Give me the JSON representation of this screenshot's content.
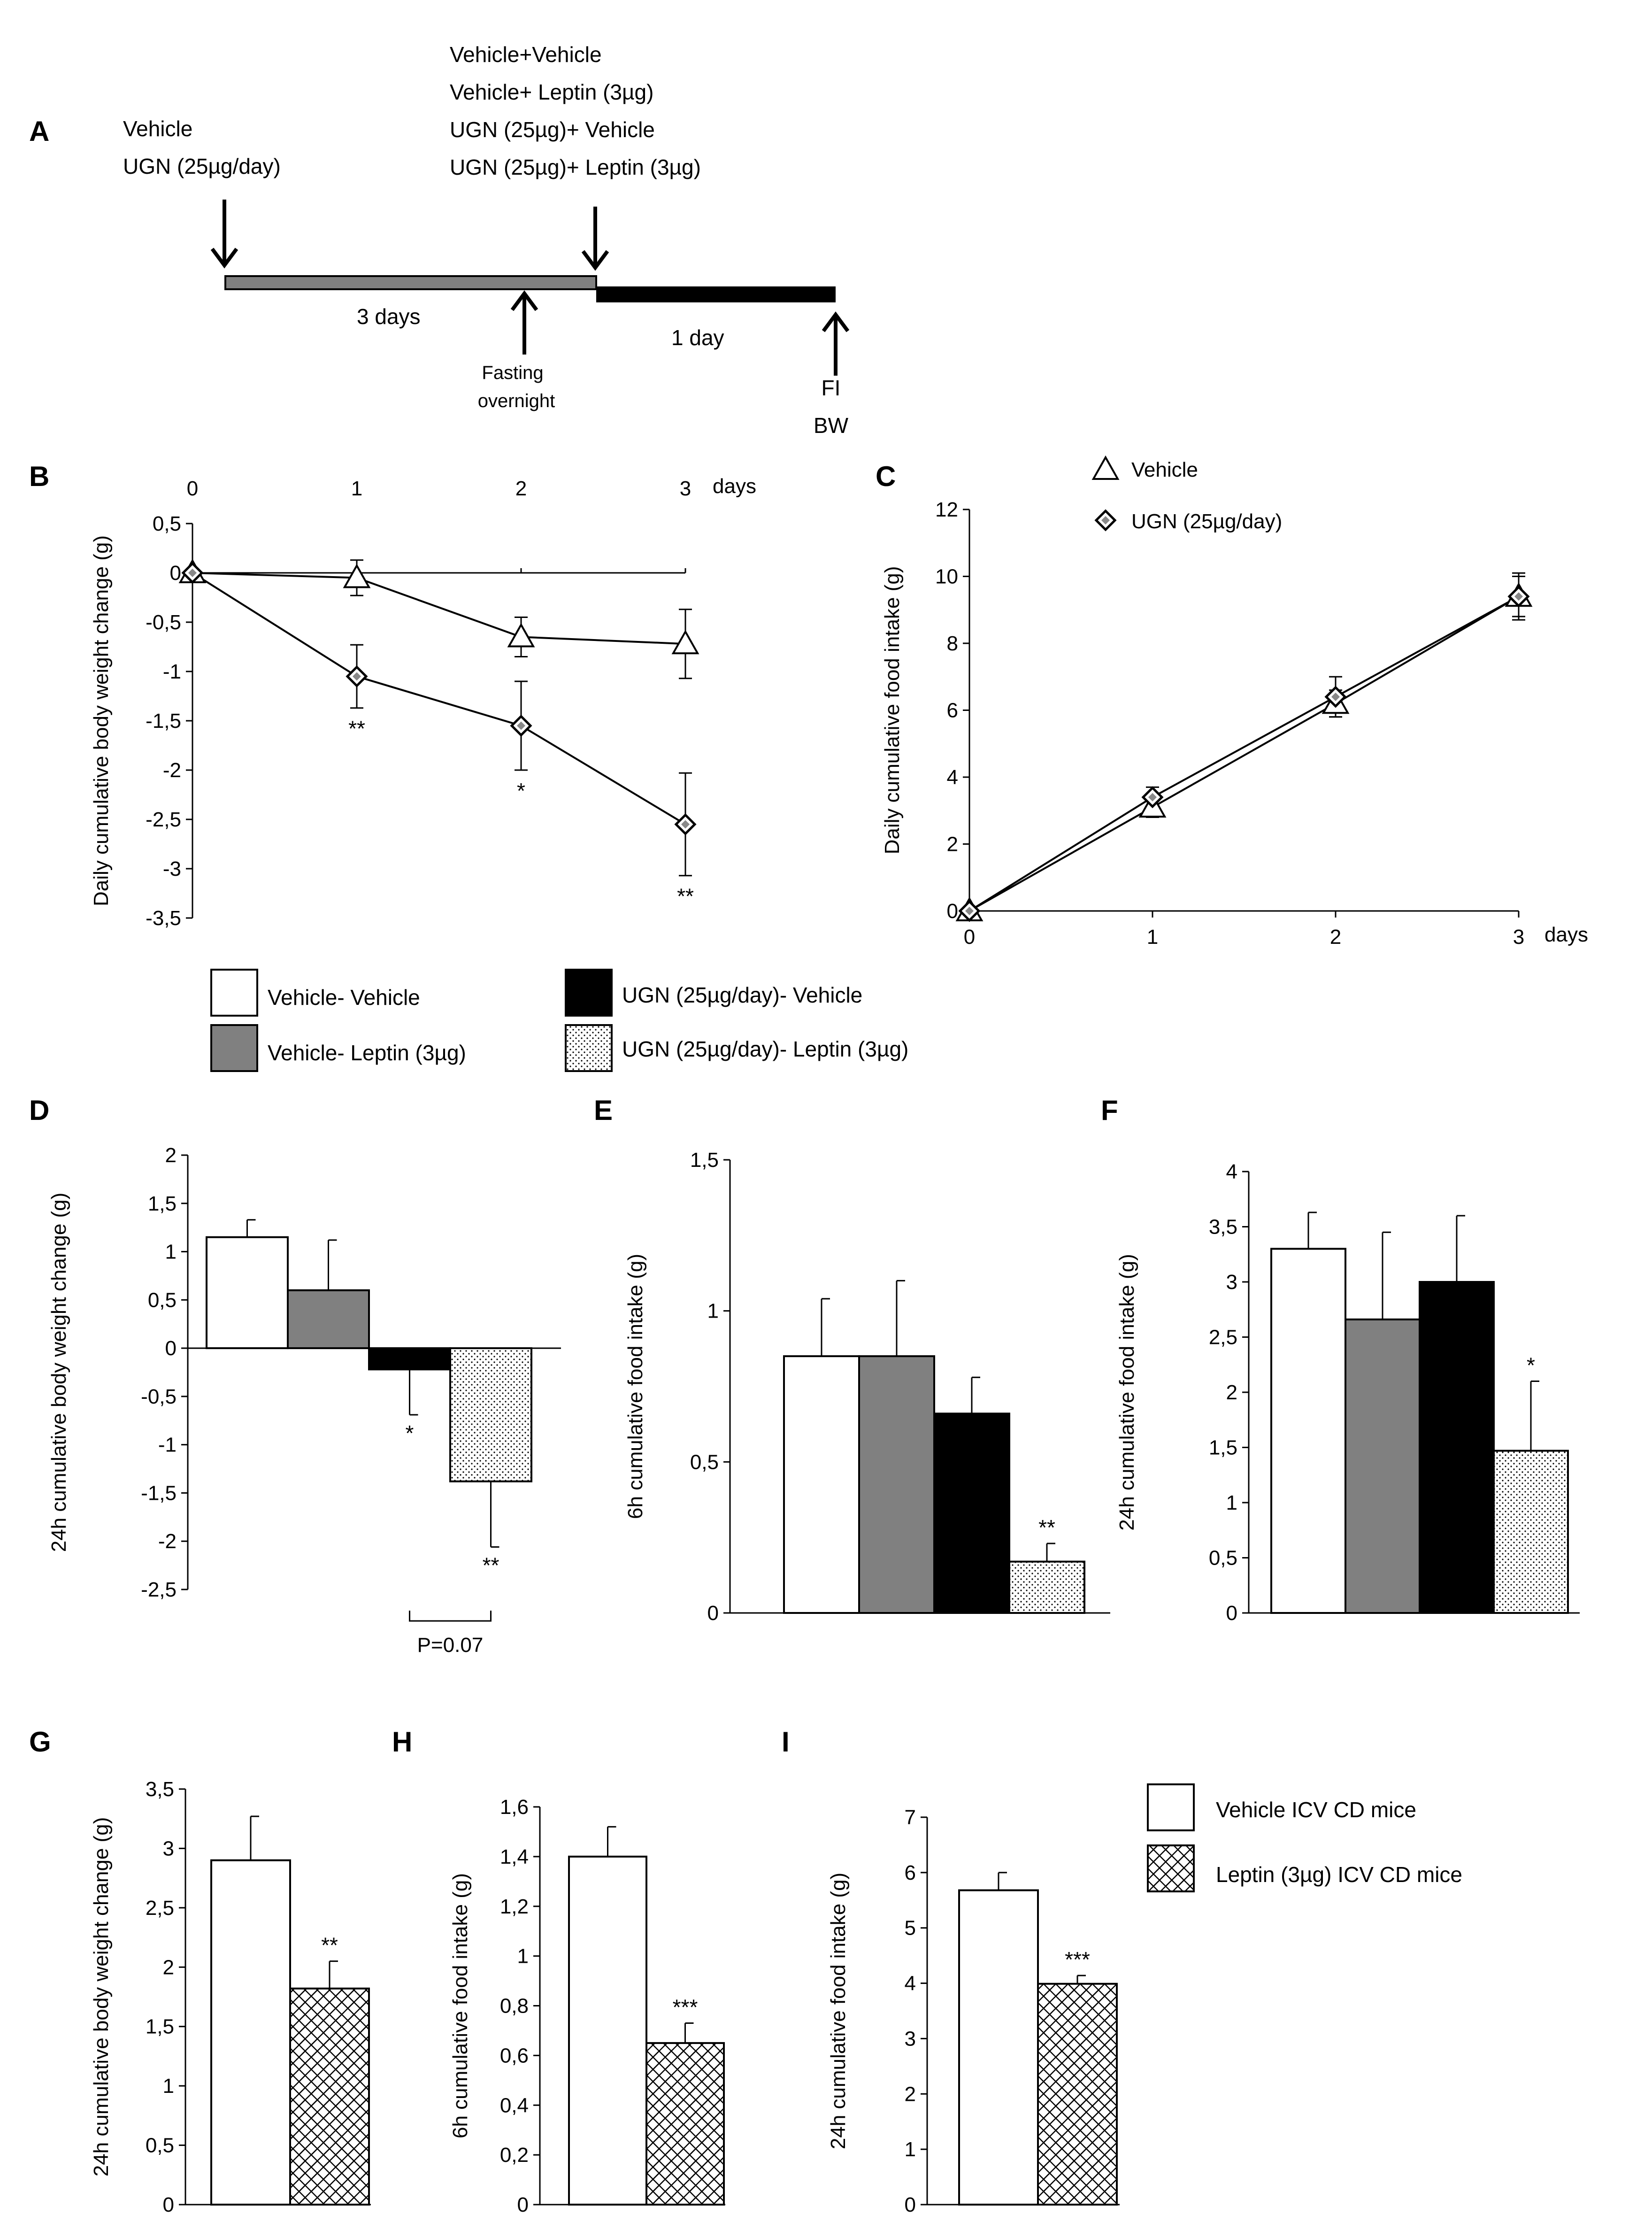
{
  "colors": {
    "vehicle_vehicle": "#ffffff",
    "vehicle_leptin": "#808080",
    "ugn_vehicle": "#000000",
    "ugn_leptin": "dotted",
    "timeline_gray": "#808080",
    "timeline_black": "#000000"
  },
  "panelA": {
    "letter": "A",
    "treatment1": [
      "Vehicle",
      "UGN (25µg/day)"
    ],
    "treatment2": [
      "Vehicle+Vehicle",
      "Vehicle+ Leptin (3µg)",
      "UGN (25µg)+ Vehicle",
      "UGN (25µg)+ Leptin (3µg)"
    ],
    "period1": "3 days",
    "period2": "1 day",
    "fasting": [
      "Fasting",
      "overnight"
    ],
    "measure": [
      "FI",
      "BW"
    ]
  },
  "legend_mid": {
    "items": [
      "Vehicle- Vehicle",
      "Vehicle- Leptin (3µg)",
      "UGN (25µg/day)- Vehicle",
      "UGN (25µg/day)- Leptin (3µg)"
    ]
  },
  "legend_bottom": {
    "items": [
      "Vehicle ICV CD mice",
      "Leptin (3µg) ICV CD mice"
    ]
  },
  "chart_data": [
    {
      "panel": "B",
      "type": "line",
      "xlabel": "days",
      "ylabel": "Daily cumulative body weight change (g)",
      "x": [
        0,
        1,
        2,
        3
      ],
      "ylim": [
        -3.5,
        0.5
      ],
      "yticks": [
        "0,5",
        "0",
        "-0,5",
        "-1",
        "-1,5",
        "-2",
        "-2,5",
        "-3",
        "-3,5"
      ],
      "xticks": [
        "0",
        "1",
        "2",
        "3"
      ],
      "xaxis_position": "top",
      "series": [
        {
          "name": "Vehicle",
          "marker": "triangle",
          "values": [
            0,
            -0.05,
            -0.65,
            -0.72
          ],
          "err": [
            0,
            0.18,
            0.2,
            0.35
          ]
        },
        {
          "name": "UGN (25µg/day)",
          "marker": "diamond",
          "values": [
            0,
            -1.05,
            -1.55,
            -2.55
          ],
          "err": [
            0,
            0.32,
            0.45,
            0.52
          ]
        }
      ],
      "annotations": [
        {
          "x": 1,
          "text": "**"
        },
        {
          "x": 2,
          "text": "*"
        },
        {
          "x": 3,
          "text": "**"
        }
      ]
    },
    {
      "panel": "C",
      "type": "line",
      "xlabel": "days",
      "ylabel": "Daily cumulative food intake (g)",
      "x": [
        0,
        1,
        2,
        3
      ],
      "ylim": [
        0,
        12
      ],
      "yticks": [
        "12",
        "10",
        "8",
        "6",
        "4",
        "2",
        "0"
      ],
      "xticks": [
        "0",
        "1",
        "2",
        "3"
      ],
      "legend": "top-left",
      "series": [
        {
          "name": "Vehicle",
          "marker": "triangle",
          "values": [
            0,
            3.1,
            6.2,
            9.4
          ],
          "err": [
            0,
            0.3,
            0.4,
            0.7
          ]
        },
        {
          "name": "UGN (25µg/day)",
          "marker": "diamond",
          "values": [
            0,
            3.4,
            6.4,
            9.4
          ],
          "err": [
            0,
            0.3,
            0.6,
            0.6
          ]
        }
      ]
    },
    {
      "panel": "D",
      "type": "bar",
      "ylabel": "24h cumulative body weight change (g)",
      "ylim": [
        -2.5,
        2
      ],
      "yticks": [
        "2",
        "1,5",
        "1",
        "0,5",
        "0",
        "-0,5",
        "-1",
        "-1,5",
        "-2",
        "-2,5"
      ],
      "categories": [
        "Vehicle- Vehicle",
        "Vehicle- Leptin (3µg)",
        "UGN (25µg/day)- Vehicle",
        "UGN (25µg/day)- Leptin (3µg)"
      ],
      "values": [
        1.15,
        0.6,
        -0.22,
        -1.38
      ],
      "err": [
        0.18,
        0.52,
        0.47,
        0.68
      ],
      "annotations": [
        {
          "bar": 2,
          "text": "*"
        },
        {
          "bar": 3,
          "text": "**"
        }
      ],
      "bracket_label": "P=0.07"
    },
    {
      "panel": "E",
      "type": "bar",
      "ylabel": "6h cumulative food intake (g)",
      "ylim": [
        0,
        1.5
      ],
      "yticks": [
        "1,5",
        "1",
        "0,5",
        "0"
      ],
      "categories": [
        "Vehicle- Vehicle",
        "Vehicle- Leptin (3µg)",
        "UGN (25µg/day)- Vehicle",
        "UGN (25µg/day)- Leptin (3µg)"
      ],
      "values": [
        0.85,
        0.85,
        0.66,
        0.17
      ],
      "err": [
        0.19,
        0.25,
        0.12,
        0.06
      ],
      "annotations": [
        {
          "bar": 3,
          "text": "**"
        }
      ]
    },
    {
      "panel": "F",
      "type": "bar",
      "ylabel": "24h cumulative food intake (g)",
      "ylim": [
        0,
        4
      ],
      "yticks": [
        "4",
        "3,5",
        "3",
        "2,5",
        "2",
        "1,5",
        "1",
        "0,5",
        "0"
      ],
      "categories": [
        "Vehicle- Vehicle",
        "Vehicle- Leptin (3µg)",
        "UGN (25µg/day)- Vehicle",
        "UGN (25µg/day)- Leptin (3µg)"
      ],
      "values": [
        3.3,
        2.66,
        3.0,
        1.47
      ],
      "err": [
        0.33,
        0.79,
        0.6,
        0.63
      ],
      "annotations": [
        {
          "bar": 3,
          "text": "*"
        }
      ]
    },
    {
      "panel": "G",
      "type": "bar",
      "ylabel": "24h cumulative body weight change (g)",
      "ylim": [
        0,
        3.5
      ],
      "yticks": [
        "3,5",
        "3",
        "2,5",
        "2",
        "1,5",
        "1",
        "0,5",
        "0"
      ],
      "categories": [
        "Vehicle ICV CD mice",
        "Leptin (3µg) ICV CD mice"
      ],
      "values": [
        2.9,
        1.82
      ],
      "err": [
        0.37,
        0.23
      ],
      "annotations": [
        {
          "bar": 1,
          "text": "**"
        }
      ]
    },
    {
      "panel": "H",
      "type": "bar",
      "ylabel": "6h cumulative food intake (g)",
      "ylim": [
        0,
        1.6
      ],
      "yticks": [
        "1,6",
        "1,4",
        "1,2",
        "1",
        "0,8",
        "0,6",
        "0,4",
        "0,2",
        "0"
      ],
      "categories": [
        "Vehicle ICV CD mice",
        "Leptin (3µg) ICV CD mice"
      ],
      "values": [
        1.4,
        0.65
      ],
      "err": [
        0.12,
        0.08
      ],
      "annotations": [
        {
          "bar": 1,
          "text": "***"
        }
      ]
    },
    {
      "panel": "I",
      "type": "bar",
      "ylabel": "24h cumulative food intake (g)",
      "ylim": [
        0,
        7
      ],
      "yticks": [
        "7",
        "6",
        "5",
        "4",
        "3",
        "2",
        "1",
        "0"
      ],
      "categories": [
        "Vehicle ICV CD mice",
        "Leptin (3µg) ICV CD mice"
      ],
      "values": [
        5.68,
        3.99
      ],
      "err": [
        0.32,
        0.15
      ],
      "annotations": [
        {
          "bar": 1,
          "text": "***"
        }
      ]
    }
  ]
}
